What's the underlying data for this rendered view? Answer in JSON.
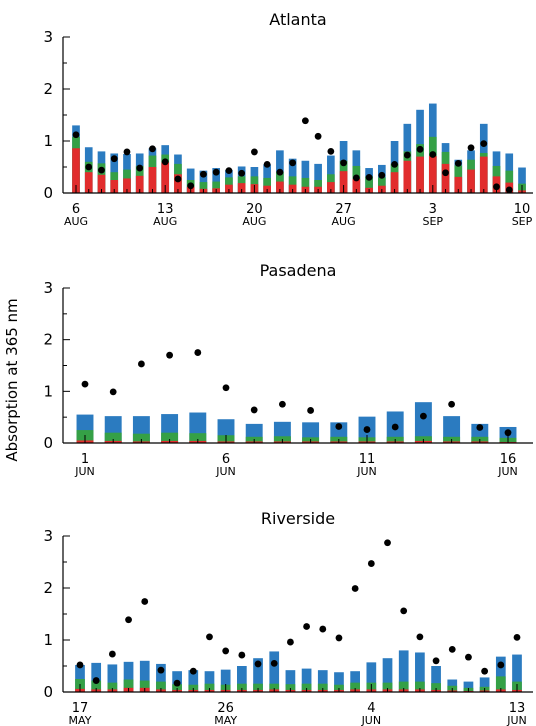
{
  "figure": {
    "ylabel": "Absorption at 365 nm"
  },
  "colors": {
    "blue": "#2b7bc0",
    "green": "#35a046",
    "red": "#e12d2d",
    "dot": "#000000"
  },
  "chart_data": [
    {
      "type": "bar",
      "title": "Atlanta",
      "ylim": [
        0,
        3
      ],
      "yticks": [
        0,
        1,
        2,
        3
      ],
      "xrange": [
        6,
        41
      ],
      "xticks": [
        {
          "x": 6,
          "label": "6",
          "sub": "AUG"
        },
        {
          "x": 13,
          "label": "13",
          "sub": "AUG"
        },
        {
          "x": 20,
          "label": "20",
          "sub": "AUG"
        },
        {
          "x": 27,
          "label": "27",
          "sub": "AUG"
        },
        {
          "x": 34,
          "label": "3",
          "sub": "SEP"
        },
        {
          "x": 41,
          "label": "10",
          "sub": "SEP"
        }
      ],
      "x": [
        6,
        7,
        8,
        9,
        10,
        11,
        12,
        13,
        14,
        15,
        16,
        17,
        18,
        19,
        20,
        21,
        22,
        23,
        24,
        25,
        26,
        27,
        28,
        29,
        30,
        31,
        32,
        33,
        34,
        35,
        36,
        37,
        38,
        39,
        40,
        41
      ],
      "series": [
        {
          "values": [
            1.3,
            0.88,
            0.8,
            0.76,
            0.75,
            0.76,
            0.86,
            0.92,
            0.74,
            0.47,
            0.43,
            0.48,
            0.44,
            0.51,
            0.5,
            0.55,
            0.82,
            0.66,
            0.62,
            0.56,
            0.72,
            1.0,
            0.82,
            0.48,
            0.54,
            1.0,
            1.33,
            1.6,
            1.72,
            0.96,
            0.64,
            0.82,
            1.33,
            0.8,
            0.76,
            0.49
          ]
        },
        {
          "values": [
            1.08,
            0.6,
            0.57,
            0.4,
            0.45,
            0.52,
            0.72,
            0.74,
            0.56,
            0.25,
            0.21,
            0.22,
            0.3,
            0.32,
            0.32,
            0.29,
            0.41,
            0.32,
            0.29,
            0.25,
            0.36,
            0.62,
            0.52,
            0.32,
            0.3,
            0.56,
            0.8,
            0.94,
            1.08,
            0.79,
            0.53,
            0.64,
            0.77,
            0.52,
            0.43,
            0.18
          ]
        },
        {
          "values": [
            0.86,
            0.4,
            0.35,
            0.25,
            0.28,
            0.33,
            0.5,
            0.59,
            0.36,
            0.12,
            0.08,
            0.09,
            0.16,
            0.19,
            0.17,
            0.14,
            0.22,
            0.16,
            0.12,
            0.12,
            0.21,
            0.42,
            0.27,
            0.1,
            0.14,
            0.4,
            0.62,
            0.7,
            0.71,
            0.56,
            0.31,
            0.45,
            0.7,
            0.32,
            0.2,
            0.05
          ]
        }
      ],
      "points": [
        [
          6,
          1.12
        ],
        [
          7,
          0.5
        ],
        [
          8,
          0.44
        ],
        [
          9,
          0.66
        ],
        [
          10,
          0.79
        ],
        [
          11,
          0.48
        ],
        [
          12,
          0.85
        ],
        [
          13,
          0.6
        ],
        [
          14,
          0.27
        ],
        [
          15,
          0.14
        ],
        [
          16,
          0.36
        ],
        [
          17,
          0.4
        ],
        [
          18,
          0.43
        ],
        [
          19,
          0.38
        ],
        [
          20,
          0.79
        ],
        [
          21,
          0.55
        ],
        [
          22,
          0.4
        ],
        [
          23,
          0.58
        ],
        [
          24,
          1.39
        ],
        [
          25,
          1.09
        ],
        [
          26,
          0.8
        ],
        [
          27,
          0.58
        ],
        [
          28,
          0.29
        ],
        [
          29,
          0.3
        ],
        [
          30,
          0.34
        ],
        [
          31,
          0.55
        ],
        [
          32,
          0.73
        ],
        [
          33,
          0.84
        ],
        [
          34,
          0.74
        ],
        [
          35,
          0.39
        ],
        [
          36,
          0.57
        ],
        [
          37,
          0.87
        ],
        [
          38,
          0.95
        ],
        [
          39,
          0.12
        ],
        [
          40,
          0.06
        ]
      ]
    },
    {
      "type": "bar",
      "title": "Pasadena",
      "ylim": [
        0,
        3
      ],
      "yticks": [
        0,
        1,
        2,
        3
      ],
      "xrange": [
        1,
        16
      ],
      "xticks": [
        {
          "x": 1,
          "label": "1",
          "sub": "JUN"
        },
        {
          "x": 6,
          "label": "6",
          "sub": "JUN"
        },
        {
          "x": 11,
          "label": "11",
          "sub": "JUN"
        },
        {
          "x": 16,
          "label": "16",
          "sub": "JUN"
        }
      ],
      "x": [
        1,
        2,
        3,
        4,
        5,
        6,
        7,
        8,
        9,
        10,
        11,
        12,
        13,
        14,
        15,
        16
      ],
      "series": [
        {
          "values": [
            0.55,
            0.52,
            0.52,
            0.56,
            0.59,
            0.46,
            0.37,
            0.41,
            0.4,
            0.4,
            0.51,
            0.61,
            0.79,
            0.52,
            0.37,
            0.31
          ]
        },
        {
          "values": [
            0.25,
            0.2,
            0.18,
            0.2,
            0.19,
            0.15,
            0.12,
            0.13,
            0.11,
            0.12,
            0.11,
            0.12,
            0.13,
            0.12,
            0.12,
            0.1
          ]
        },
        {
          "values": [
            0.05,
            0.04,
            0.03,
            0.04,
            0.04,
            0.03,
            0.03,
            0.03,
            0.03,
            0.03,
            0.03,
            0.03,
            0.04,
            0.03,
            0.03,
            0.02
          ]
        }
      ],
      "points": [
        [
          1,
          1.14
        ],
        [
          2,
          0.99
        ],
        [
          3,
          1.53
        ],
        [
          4,
          1.7
        ],
        [
          5,
          1.75
        ],
        [
          6,
          1.07
        ],
        [
          7,
          0.64
        ],
        [
          8,
          0.75
        ],
        [
          9,
          0.63
        ],
        [
          10,
          0.32
        ],
        [
          11,
          0.26
        ],
        [
          12,
          0.31
        ],
        [
          13,
          0.52
        ],
        [
          14,
          0.75
        ],
        [
          15,
          0.3
        ],
        [
          16,
          0.2
        ]
      ]
    },
    {
      "type": "bar",
      "title": "Riverside",
      "ylim": [
        0,
        3
      ],
      "yticks": [
        0,
        1,
        2,
        3
      ],
      "xrange": [
        17,
        44
      ],
      "xticks": [
        {
          "x": 17,
          "label": "17",
          "sub": "MAY"
        },
        {
          "x": 26,
          "label": "26",
          "sub": "MAY"
        },
        {
          "x": 35,
          "label": "4",
          "sub": "JUN"
        },
        {
          "x": 44,
          "label": "13",
          "sub": "JUN"
        }
      ],
      "x": [
        17,
        18,
        19,
        20,
        21,
        22,
        23,
        24,
        25,
        26,
        27,
        28,
        29,
        30,
        31,
        32,
        33,
        34,
        35,
        36,
        37,
        38,
        39,
        40,
        41,
        42,
        43,
        44
      ],
      "series": [
        {
          "values": [
            0.52,
            0.56,
            0.53,
            0.58,
            0.6,
            0.54,
            0.4,
            0.42,
            0.4,
            0.43,
            0.5,
            0.65,
            0.78,
            0.42,
            0.45,
            0.42,
            0.38,
            0.4,
            0.57,
            0.65,
            0.8,
            0.76,
            0.5,
            0.24,
            0.2,
            0.28,
            0.68,
            0.72
          ]
        },
        {
          "values": [
            0.25,
            0.22,
            0.18,
            0.24,
            0.22,
            0.2,
            0.15,
            0.14,
            0.16,
            0.14,
            0.16,
            0.16,
            0.16,
            0.15,
            0.16,
            0.16,
            0.14,
            0.18,
            0.18,
            0.18,
            0.2,
            0.2,
            0.17,
            0.12,
            0.08,
            0.1,
            0.3,
            0.2
          ]
        },
        {
          "values": [
            0.06,
            0.05,
            0.05,
            0.08,
            0.08,
            0.05,
            0.04,
            0.04,
            0.04,
            0.04,
            0.04,
            0.04,
            0.05,
            0.04,
            0.04,
            0.04,
            0.04,
            0.05,
            0.05,
            0.05,
            0.05,
            0.05,
            0.04,
            0.03,
            0.02,
            0.03,
            0.05,
            0.04
          ]
        }
      ],
      "points": [
        [
          17,
          0.52
        ],
        [
          18,
          0.22
        ],
        [
          19,
          0.73
        ],
        [
          20,
          1.39
        ],
        [
          21,
          1.74
        ],
        [
          22,
          0.42
        ],
        [
          23,
          0.17
        ],
        [
          24,
          0.4
        ],
        [
          25,
          1.06
        ],
        [
          26,
          0.79
        ],
        [
          27,
          0.71
        ],
        [
          28,
          0.54
        ],
        [
          29,
          0.55
        ],
        [
          30,
          0.96
        ],
        [
          31,
          1.26
        ],
        [
          32,
          1.21
        ],
        [
          33,
          1.04
        ],
        [
          34,
          1.99
        ],
        [
          35,
          2.47
        ],
        [
          36,
          2.87
        ],
        [
          37,
          1.56
        ],
        [
          38,
          1.06
        ],
        [
          39,
          0.6
        ],
        [
          40,
          0.82
        ],
        [
          41,
          0.67
        ],
        [
          42,
          0.4
        ],
        [
          43,
          0.52
        ],
        [
          44,
          1.05
        ]
      ]
    }
  ]
}
